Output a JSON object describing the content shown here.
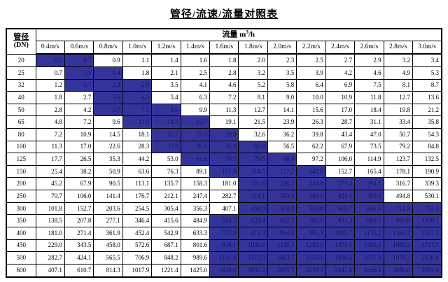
{
  "title": "管径/流速/流量对照表",
  "table": {
    "corner": {
      "line1": "管径",
      "line2": "(DN)"
    },
    "flow_header": {
      "label": "流量 m",
      "sup": "3",
      "unit_suffix": "/h"
    },
    "velocities": [
      "0.4m/s",
      "0.6m/s",
      "0.8m/s",
      "1.0m/s",
      "1.2m/s",
      "1.4m/s",
      "1.6m/s",
      "1.8m/s",
      "2.0m/s",
      "2.2m/s",
      "2.4m/s",
      "2.6m/s",
      "2.8m/s",
      "3.0m/s"
    ],
    "rows": [
      {
        "dn": "20",
        "values": [
          "0.5",
          "0.7",
          "0.9",
          "1.1",
          "1.4",
          "1.6",
          "1.8",
          "2.0",
          "2.3",
          "2.5",
          "2.7",
          "2.9",
          "3.2",
          "3.4"
        ],
        "highlighted": [
          0,
          1
        ]
      },
      {
        "dn": "25",
        "values": [
          "0.7",
          "1.1",
          "1.4",
          "1.8",
          "2.1",
          "2.5",
          "2.8",
          "3.2",
          "3.5",
          "3.9",
          "4.2",
          "4.6",
          "4.9",
          "5.3"
        ],
        "highlighted": [
          1,
          2
        ]
      },
      {
        "dn": "32",
        "values": [
          "1.2",
          "1.7",
          "2.3",
          "2.9",
          "3.5",
          "4.1",
          "4.6",
          "5.2",
          "5.8",
          "6.4",
          "6.9",
          "7.5",
          "8.1",
          "8.7"
        ],
        "highlighted": [
          1,
          2,
          3
        ]
      },
      {
        "dn": "40",
        "values": [
          "1.8",
          "2.7",
          "3.6",
          "4.5",
          "5.4",
          "6.3",
          "7.2",
          "8.1",
          "9.0",
          "10.0",
          "10.9",
          "11.8",
          "12.7",
          "13.6"
        ],
        "highlighted": [
          2,
          3
        ]
      },
      {
        "dn": "50",
        "values": [
          "2.8",
          "4.2",
          "5.7",
          "7.1",
          "8.5",
          "9.9",
          "11.3",
          "12.7",
          "14.1",
          "15.6",
          "17.0",
          "18.4",
          "19.8",
          "21.2"
        ],
        "highlighted": [
          2,
          3,
          4
        ]
      },
      {
        "dn": "65",
        "values": [
          "4.8",
          "7.2",
          "9.6",
          "11.9",
          "14.3",
          "16.7",
          "19.1",
          "21.5",
          "23.9",
          "26.3",
          "28.7",
          "31.1",
          "33.4",
          "35.8"
        ],
        "highlighted": [
          3,
          4,
          5
        ]
      },
      {
        "dn": "80",
        "values": [
          "7.2",
          "10.9",
          "14.5",
          "18.1",
          "21.7",
          "25.3",
          "29.0",
          "32.6",
          "36.2",
          "39.8",
          "43.4",
          "47.0",
          "50.7",
          "54.3"
        ],
        "highlighted": [
          4,
          5,
          6
        ]
      },
      {
        "dn": "100",
        "values": [
          "11.3",
          "17.0",
          "22.6",
          "28.3",
          "33.9",
          "39.6",
          "45.2",
          "50.9",
          "56.5",
          "62.2",
          "67.9",
          "73.5",
          "79.2",
          "84.8"
        ],
        "highlighted": [
          4,
          5,
          6,
          7
        ]
      },
      {
        "dn": "125",
        "values": [
          "17.7",
          "26.5",
          "35.3",
          "44.2",
          "53.0",
          "61.9",
          "70.7",
          "79.5",
          "88.4",
          "97.2",
          "106.0",
          "114.9",
          "123.7",
          "132.5"
        ],
        "highlighted": [
          5,
          6,
          7,
          8
        ]
      },
      {
        "dn": "150",
        "values": [
          "25.4",
          "38.2",
          "50.9",
          "63.6",
          "76.3",
          "89.1",
          "101.8",
          "114.5",
          "127.2",
          "140.0",
          "152.7",
          "165.4",
          "178.1",
          "190.9"
        ],
        "highlighted": [
          6,
          7,
          8,
          9
        ]
      },
      {
        "dn": "200",
        "values": [
          "45.2",
          "67.9",
          "90.5",
          "113.1",
          "135.7",
          "158.3",
          "181.0",
          "203.6",
          "226.2",
          "248.8",
          "271.4",
          "294.1",
          "316.7",
          "339.3"
        ],
        "highlighted": [
          7,
          8,
          9,
          10,
          11
        ]
      },
      {
        "dn": "250",
        "values": [
          "70.7",
          "106.0",
          "141.4",
          "176.7",
          "212.1",
          "247.4",
          "282.7",
          "318.1",
          "353.4",
          "388.8",
          "424.1",
          "459.5",
          "494.8",
          "530.1"
        ],
        "highlighted": [
          7,
          8,
          9,
          10,
          11
        ]
      },
      {
        "dn": "300",
        "values": [
          "101.8",
          "152.7",
          "203.6",
          "254.5",
          "305.4",
          "356.3",
          "407.1",
          "458.0",
          "508.9",
          "559.8",
          "610.7",
          "661.6",
          "712.5",
          "763.4"
        ],
        "highlighted": [
          7,
          8,
          9,
          10,
          11,
          12,
          13
        ]
      },
      {
        "dn": "350",
        "values": [
          "138.5",
          "207.8",
          "277.1",
          "346.4",
          "415.6",
          "484.9",
          "554.2",
          "623.4",
          "692.7",
          "762.0",
          "831.3",
          "900.5",
          "969.8",
          "1039.1"
        ],
        "highlighted": [
          6,
          7,
          8,
          9,
          10,
          11,
          12,
          13
        ]
      },
      {
        "dn": "400",
        "values": [
          "181.0",
          "271.4",
          "361.9",
          "452.4",
          "542.9",
          "633.3",
          "723.8",
          "814.3",
          "904.8",
          "995.3",
          "1085.7",
          "1176.2",
          "1266.7",
          "1357.2"
        ],
        "highlighted": [
          6,
          7,
          8,
          9,
          10,
          11,
          12,
          13
        ]
      },
      {
        "dn": "450",
        "values": [
          "229.0",
          "343.5",
          "458.0",
          "572.6",
          "687.1",
          "801.6",
          "916.1",
          "1030.6",
          "1145.1",
          "1259.6",
          "1374.1",
          "1488.6",
          "1603.2",
          "1717.7"
        ],
        "highlighted": [
          6,
          7,
          8,
          9,
          10,
          11,
          12,
          13
        ]
      },
      {
        "dn": "500",
        "values": [
          "282.7",
          "424.1",
          "565.5",
          "706.9",
          "848.2",
          "989.6",
          "1131.0",
          "1272.3",
          "1413.7",
          "1555.1",
          "1696.5",
          "1837.8",
          "1979.2",
          "2120.6"
        ],
        "highlighted": [
          6,
          7,
          8,
          9,
          10,
          11,
          12,
          13
        ]
      },
      {
        "dn": "600",
        "values": [
          "407.1",
          "610.7",
          "814.3",
          "1017.9",
          "1221.4",
          "1425.0",
          "1628.6",
          "1832.2",
          "2035.7",
          "2239.3",
          "2442.9",
          "2646.5",
          "2850.0",
          "3053.6"
        ],
        "highlighted": [
          6,
          7,
          8,
          9,
          10,
          11,
          12,
          13
        ]
      }
    ]
  },
  "colors": {
    "highlight_bg": "#34349B",
    "highlight_text": "#15155E",
    "border": "#000000",
    "text": "#000000",
    "background": "#FFFFFF"
  }
}
